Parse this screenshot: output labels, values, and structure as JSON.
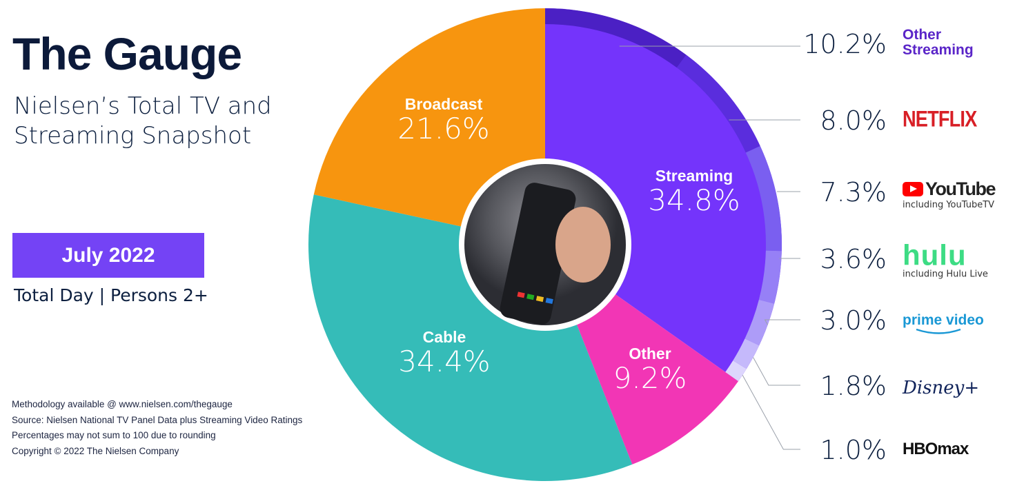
{
  "header": {
    "title": "The Gauge",
    "subtitle": "Nielsen’s Total TV and Streaming Snapshot",
    "date_label": "July 2022",
    "meta": "Total Day | Persons 2+"
  },
  "notes": [
    "Methodology available @ www.nielsen.com/thegauge",
    "Source: Nielsen National TV Panel Data plus Streaming Video Ratings",
    "Percentages may not sum to 100 due to rounding",
    "Copyright © 2022 The Nielsen Company"
  ],
  "chart_data": {
    "type": "pie",
    "donut": true,
    "categories": [
      "Streaming",
      "Other",
      "Cable",
      "Broadcast"
    ],
    "values": [
      34.8,
      9.2,
      34.4,
      21.6
    ],
    "value_labels": [
      "34.8%",
      "9.2%",
      "34.4%",
      "21.6%"
    ],
    "colors": [
      "#7434fb",
      "#f236b5",
      "#35bcb8",
      "#f7950f"
    ],
    "breakdown": {
      "parent": "Streaming",
      "categories": [
        "Other Streaming",
        "Netflix",
        "YouTube",
        "Hulu",
        "Prime Video",
        "Disney+",
        "HBO Max"
      ],
      "values": [
        10.2,
        8.0,
        7.3,
        3.6,
        3.0,
        1.8,
        1.0
      ],
      "value_labels": [
        "10.2%",
        "8.0%",
        "7.3%",
        "3.6%",
        "3.0%",
        "1.8%",
        "1.0%"
      ],
      "colors": [
        "#4b20c4",
        "#5a2ddd",
        "#7a5ff0",
        "#9680f6",
        "#ad9cf8",
        "#c5b9fb",
        "#ddd6fd"
      ],
      "logo_text": [
        "Other Streaming",
        "NETFLIX",
        "YouTube",
        "hulu",
        "prime video",
        "Disney+",
        "HBOmax"
      ],
      "logo_sub": [
        "",
        "",
        "including YouTubeTV",
        "including Hulu Live",
        "",
        "",
        ""
      ]
    }
  }
}
